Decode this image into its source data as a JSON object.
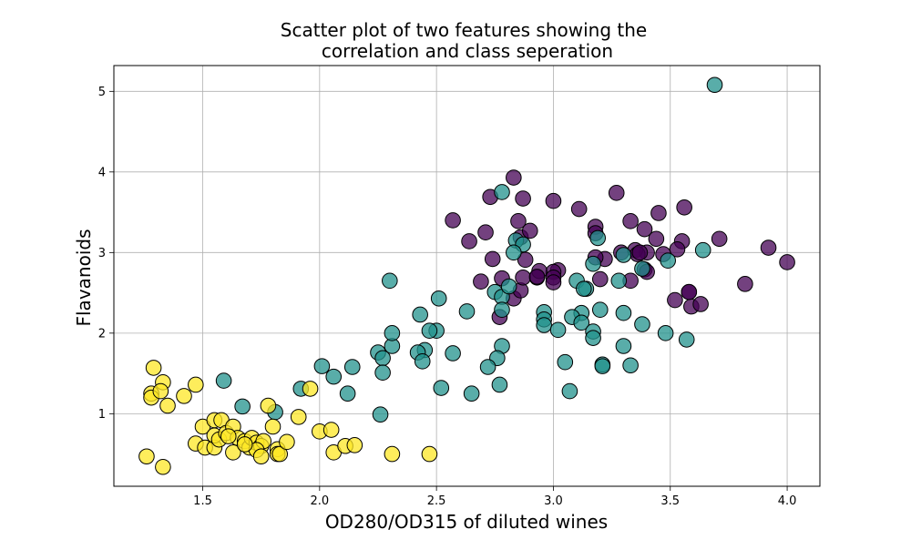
{
  "chart_data": {
    "type": "scatter",
    "title": "Scatter plot of two features showing the\ncorrelation and class seperation",
    "xlabel": "OD280/OD315 of diluted wines",
    "ylabel": "Flavanoids",
    "xlim": [
      1.12,
      4.14
    ],
    "ylim": [
      0.1,
      5.32
    ],
    "xticks": [
      1.5,
      2.0,
      2.5,
      3.0,
      3.5,
      4.0
    ],
    "yticks": [
      1,
      2,
      3,
      4,
      5
    ],
    "xticklabels": [
      "1.5",
      "2.0",
      "2.5",
      "3.0",
      "3.5",
      "4.0"
    ],
    "yticklabels": [
      "1",
      "2",
      "3",
      "4",
      "5"
    ],
    "grid": true,
    "colors": {
      "class_0": "#440154",
      "class_1": "#21918c",
      "class_2": "#fde725",
      "edge": "#000000"
    },
    "series": [
      {
        "color": "#440154",
        "points": [
          [
            2.83,
            3.93
          ],
          [
            3.0,
            3.64
          ],
          [
            2.87,
            3.67
          ],
          [
            2.73,
            3.69
          ],
          [
            3.27,
            3.74
          ],
          [
            2.57,
            3.4
          ],
          [
            3.11,
            3.54
          ],
          [
            3.45,
            3.49
          ],
          [
            3.56,
            3.56
          ],
          [
            2.85,
            3.39
          ],
          [
            3.18,
            3.32
          ],
          [
            3.33,
            3.39
          ],
          [
            3.39,
            3.29
          ],
          [
            2.71,
            3.25
          ],
          [
            2.86,
            3.19
          ],
          [
            2.9,
            3.27
          ],
          [
            2.64,
            3.14
          ],
          [
            3.18,
            3.24
          ],
          [
            3.44,
            3.17
          ],
          [
            3.55,
            3.14
          ],
          [
            3.71,
            3.17
          ],
          [
            3.92,
            3.06
          ],
          [
            3.29,
            3.0
          ],
          [
            3.4,
            3.0
          ],
          [
            3.53,
            3.04
          ],
          [
            3.35,
            3.03
          ],
          [
            3.36,
            2.98
          ],
          [
            3.22,
            2.92
          ],
          [
            3.18,
            2.94
          ],
          [
            2.74,
            2.92
          ],
          [
            2.88,
            2.91
          ],
          [
            3.39,
            2.79
          ],
          [
            3.02,
            2.78
          ],
          [
            2.93,
            2.69
          ],
          [
            3.0,
            2.76
          ],
          [
            3.0,
            2.69
          ],
          [
            3.0,
            2.63
          ],
          [
            4.0,
            2.88
          ],
          [
            3.2,
            2.67
          ],
          [
            3.33,
            2.65
          ],
          [
            2.69,
            2.64
          ],
          [
            2.78,
            2.68
          ],
          [
            2.83,
            2.43
          ],
          [
            2.86,
            2.53
          ],
          [
            2.77,
            2.2
          ],
          [
            3.52,
            2.41
          ],
          [
            3.58,
            2.51
          ],
          [
            3.59,
            2.33
          ],
          [
            3.63,
            2.36
          ],
          [
            3.82,
            2.61
          ],
          [
            3.4,
            2.76
          ],
          [
            2.87,
            2.69
          ],
          [
            2.94,
            2.77
          ],
          [
            2.93,
            2.7
          ],
          [
            3.37,
            3.0
          ],
          [
            3.47,
            2.98
          ],
          [
            3.58,
            2.51
          ]
        ]
      },
      {
        "color": "#21918c",
        "points": [
          [
            3.69,
            5.08
          ],
          [
            2.78,
            3.75
          ],
          [
            2.84,
            3.15
          ],
          [
            2.87,
            3.1
          ],
          [
            2.83,
            3.0
          ],
          [
            3.17,
            2.86
          ],
          [
            3.19,
            3.18
          ],
          [
            3.3,
            2.97
          ],
          [
            3.64,
            3.03
          ],
          [
            3.38,
            2.8
          ],
          [
            3.49,
            2.9
          ],
          [
            3.28,
            2.65
          ],
          [
            3.1,
            2.65
          ],
          [
            3.14,
            2.55
          ],
          [
            3.13,
            2.55
          ],
          [
            2.75,
            2.51
          ],
          [
            2.78,
            2.45
          ],
          [
            2.81,
            2.58
          ],
          [
            2.96,
            2.26
          ],
          [
            2.96,
            2.17
          ],
          [
            2.96,
            2.1
          ],
          [
            3.02,
            2.04
          ],
          [
            3.12,
            2.25
          ],
          [
            3.08,
            2.2
          ],
          [
            3.12,
            2.13
          ],
          [
            3.17,
            2.02
          ],
          [
            3.17,
            1.94
          ],
          [
            3.2,
            2.29
          ],
          [
            3.3,
            2.25
          ],
          [
            3.38,
            2.11
          ],
          [
            3.48,
            2.0
          ],
          [
            3.57,
            1.92
          ],
          [
            3.3,
            1.84
          ],
          [
            3.21,
            1.61
          ],
          [
            3.21,
            1.59
          ],
          [
            3.33,
            1.6
          ],
          [
            3.05,
            1.64
          ],
          [
            3.07,
            1.28
          ],
          [
            2.78,
            1.84
          ],
          [
            2.76,
            1.69
          ],
          [
            2.72,
            1.58
          ],
          [
            2.77,
            1.36
          ],
          [
            2.65,
            1.25
          ],
          [
            2.52,
            1.32
          ],
          [
            2.57,
            1.75
          ],
          [
            2.63,
            2.27
          ],
          [
            2.51,
            2.43
          ],
          [
            2.5,
            2.03
          ],
          [
            2.47,
            2.03
          ],
          [
            2.43,
            2.23
          ],
          [
            2.45,
            1.79
          ],
          [
            2.42,
            1.76
          ],
          [
            2.44,
            1.65
          ],
          [
            2.25,
            1.76
          ],
          [
            2.27,
            1.69
          ],
          [
            2.27,
            1.51
          ],
          [
            2.31,
            1.84
          ],
          [
            2.31,
            2.0
          ],
          [
            2.3,
            2.65
          ],
          [
            2.14,
            1.58
          ],
          [
            2.12,
            1.25
          ],
          [
            2.06,
            1.46
          ],
          [
            2.01,
            1.59
          ],
          [
            1.92,
            1.31
          ],
          [
            1.81,
            1.02
          ],
          [
            1.67,
            1.09
          ],
          [
            1.59,
            1.41
          ],
          [
            2.26,
            0.99
          ],
          [
            2.78,
            2.29
          ]
        ]
      },
      {
        "color": "#fde725",
        "points": [
          [
            1.29,
            1.57
          ],
          [
            1.33,
            1.39
          ],
          [
            1.28,
            1.25
          ],
          [
            1.28,
            1.2
          ],
          [
            1.32,
            1.28
          ],
          [
            1.35,
            1.1
          ],
          [
            1.42,
            1.22
          ],
          [
            1.47,
            1.36
          ],
          [
            1.26,
            0.47
          ],
          [
            1.33,
            0.34
          ],
          [
            1.47,
            0.63
          ],
          [
            1.5,
            0.84
          ],
          [
            1.51,
            0.58
          ],
          [
            1.55,
            0.58
          ],
          [
            1.55,
            0.92
          ],
          [
            1.58,
            0.92
          ],
          [
            1.55,
            0.73
          ],
          [
            1.57,
            0.68
          ],
          [
            1.6,
            0.76
          ],
          [
            1.63,
            0.84
          ],
          [
            1.63,
            0.52
          ],
          [
            1.65,
            0.7
          ],
          [
            1.68,
            0.66
          ],
          [
            1.7,
            0.58
          ],
          [
            1.71,
            0.7
          ],
          [
            1.73,
            0.64
          ],
          [
            1.75,
            0.6
          ],
          [
            1.76,
            0.66
          ],
          [
            1.78,
            1.1
          ],
          [
            1.8,
            0.84
          ],
          [
            1.82,
            0.56
          ],
          [
            1.82,
            0.5
          ],
          [
            1.83,
            0.5
          ],
          [
            1.86,
            0.65
          ],
          [
            1.91,
            0.96
          ],
          [
            1.96,
            1.31
          ],
          [
            2.0,
            0.78
          ],
          [
            2.05,
            0.8
          ],
          [
            2.06,
            0.52
          ],
          [
            2.11,
            0.6
          ],
          [
            2.15,
            0.61
          ],
          [
            2.31,
            0.5
          ],
          [
            2.47,
            0.5
          ],
          [
            1.73,
            0.55
          ],
          [
            1.75,
            0.47
          ],
          [
            1.68,
            0.62
          ],
          [
            1.61,
            0.72
          ]
        ]
      }
    ]
  }
}
